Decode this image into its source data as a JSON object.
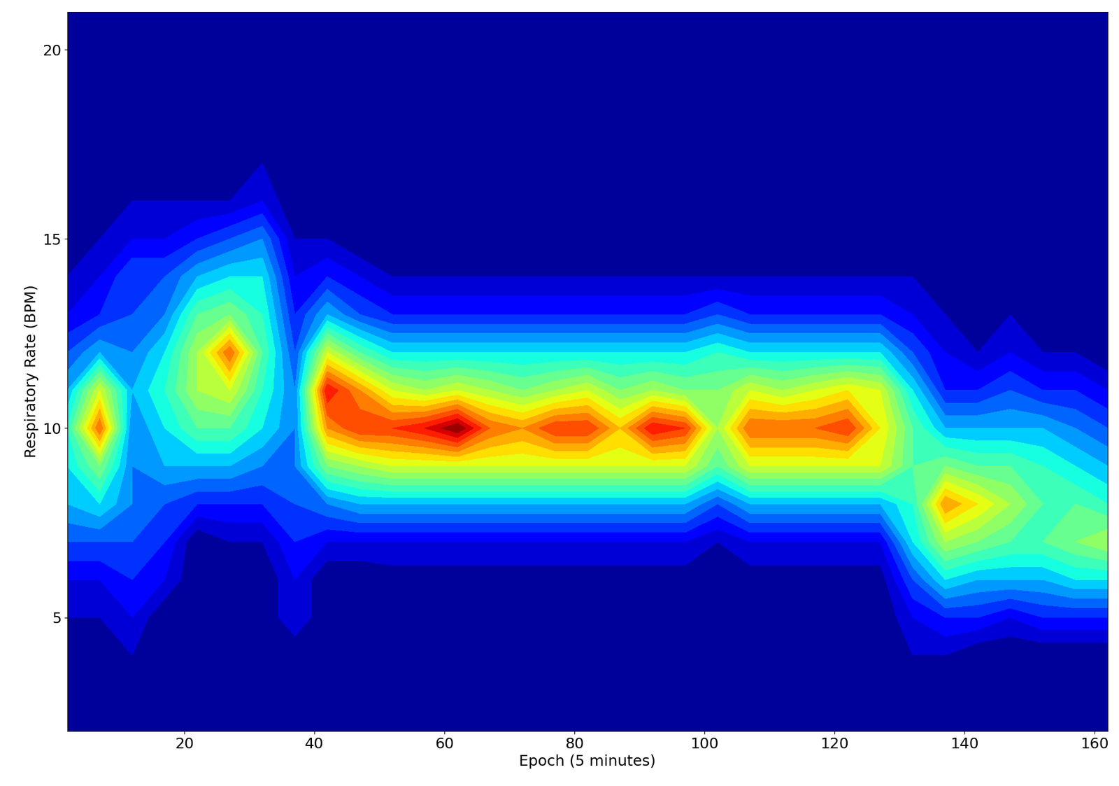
{
  "chart_data": {
    "type": "contour",
    "x_label": "Epoch (5 minutes)",
    "y_label": "Respiratory Rate (BPM)",
    "x": [
      2,
      7,
      12,
      17,
      22,
      27,
      32,
      37,
      42,
      47,
      52,
      57,
      62,
      67,
      72,
      77,
      82,
      87,
      92,
      97,
      102,
      107,
      112,
      117,
      122,
      127,
      132,
      137,
      142,
      147,
      152,
      157,
      162
    ],
    "y": [
      2,
      3,
      4,
      5,
      6,
      7,
      8,
      9,
      10,
      11,
      12,
      13,
      14,
      15,
      16,
      17,
      18,
      19,
      20,
      21
    ],
    "z": [
      [
        0,
        0,
        0,
        0.05,
        0.1,
        0.2,
        0.3,
        0.35,
        0.4,
        0.3,
        0.2,
        0.1,
        0.05,
        0,
        0,
        0,
        0,
        0,
        0,
        0
      ],
      [
        0,
        0,
        0,
        0.05,
        0.1,
        0.2,
        0.35,
        0.5,
        0.8,
        0.6,
        0.3,
        0.15,
        0.1,
        0.05,
        0,
        0,
        0,
        0,
        0,
        0
      ],
      [
        0,
        0,
        0.05,
        0.1,
        0.15,
        0.2,
        0.25,
        0.25,
        0.25,
        0.3,
        0.25,
        0.2,
        0.2,
        0.1,
        0.05,
        0.05,
        0,
        0,
        0.05,
        0
      ],
      [
        0,
        0,
        0,
        0,
        0.1,
        0.15,
        0.2,
        0.3,
        0.35,
        0.4,
        0.35,
        0.25,
        0.2,
        0.1,
        0.05,
        0.05,
        0,
        0,
        0,
        0
      ],
      [
        0,
        0,
        0,
        0,
        0,
        0,
        0.15,
        0.3,
        0.45,
        0.55,
        0.55,
        0.45,
        0.3,
        0.15,
        0.05,
        0,
        0,
        0,
        0,
        0
      ],
      [
        0,
        0,
        0,
        0,
        0,
        0.05,
        0.15,
        0.3,
        0.45,
        0.6,
        0.8,
        0.5,
        0.35,
        0.2,
        0.05,
        0.05,
        0,
        0,
        0,
        0
      ],
      [
        0,
        0,
        0,
        0,
        0,
        0.05,
        0.15,
        0.25,
        0.35,
        0.4,
        0.45,
        0.4,
        0.35,
        0.25,
        0.1,
        0.05,
        0,
        0,
        0,
        0
      ],
      [
        0,
        0,
        0,
        0.1,
        0.1,
        0.15,
        0.2,
        0.25,
        0.25,
        0.25,
        0.2,
        0.15,
        0.1,
        0.05,
        0,
        0,
        0,
        0,
        0.05,
        0
      ],
      [
        0,
        0,
        0,
        0,
        0,
        0.1,
        0.25,
        0.5,
        0.75,
        0.9,
        0.6,
        0.3,
        0.15,
        0.05,
        0,
        0,
        0,
        0,
        0,
        0
      ],
      [
        0,
        0,
        0,
        0,
        0,
        0.1,
        0.3,
        0.55,
        0.85,
        0.75,
        0.45,
        0.2,
        0.1,
        0,
        0,
        0,
        0,
        0,
        0,
        0
      ],
      [
        0,
        0,
        0,
        0,
        0.02,
        0.1,
        0.3,
        0.6,
        0.85,
        0.6,
        0.35,
        0.15,
        0.05,
        0,
        0,
        0,
        0,
        0,
        0,
        0
      ],
      [
        0,
        0,
        0,
        0,
        0.02,
        0.1,
        0.3,
        0.6,
        0.9,
        0.55,
        0.35,
        0.15,
        0.05,
        0,
        0,
        0,
        0,
        0,
        0,
        0
      ],
      [
        0,
        0,
        0,
        0,
        0.02,
        0.1,
        0.3,
        0.6,
        1.0,
        0.6,
        0.35,
        0.15,
        0.05,
        0,
        0,
        0,
        0,
        0,
        0,
        0
      ],
      [
        0,
        0,
        0,
        0,
        0.02,
        0.1,
        0.3,
        0.6,
        0.8,
        0.55,
        0.35,
        0.15,
        0.05,
        0,
        0,
        0,
        0,
        0,
        0,
        0
      ],
      [
        0,
        0,
        0,
        0,
        0.02,
        0.1,
        0.3,
        0.6,
        0.75,
        0.5,
        0.35,
        0.15,
        0.05,
        0,
        0,
        0,
        0,
        0,
        0,
        0
      ],
      [
        0,
        0,
        0,
        0,
        0.02,
        0.1,
        0.3,
        0.6,
        0.85,
        0.55,
        0.35,
        0.15,
        0.05,
        0,
        0,
        0,
        0,
        0,
        0,
        0
      ],
      [
        0,
        0,
        0,
        0,
        0.02,
        0.1,
        0.3,
        0.6,
        0.85,
        0.6,
        0.35,
        0.15,
        0.05,
        0,
        0,
        0,
        0,
        0,
        0,
        0
      ],
      [
        0,
        0,
        0,
        0,
        0.02,
        0.1,
        0.3,
        0.6,
        0.7,
        0.5,
        0.35,
        0.15,
        0.05,
        0,
        0,
        0,
        0,
        0,
        0,
        0
      ],
      [
        0,
        0,
        0,
        0,
        0.02,
        0.1,
        0.3,
        0.6,
        0.9,
        0.55,
        0.35,
        0.15,
        0.05,
        0,
        0,
        0,
        0,
        0,
        0,
        0
      ],
      [
        0,
        0,
        0,
        0,
        0.02,
        0.1,
        0.3,
        0.6,
        0.85,
        0.5,
        0.35,
        0.15,
        0.05,
        0,
        0,
        0,
        0,
        0,
        0,
        0
      ],
      [
        0,
        0,
        0,
        0,
        0.02,
        0.05,
        0.2,
        0.45,
        0.55,
        0.5,
        0.4,
        0.2,
        0.05,
        0,
        0,
        0,
        0,
        0,
        0,
        0
      ],
      [
        0,
        0,
        0,
        0,
        0.02,
        0.1,
        0.3,
        0.6,
        0.8,
        0.6,
        0.35,
        0.15,
        0.05,
        0,
        0,
        0,
        0,
        0,
        0,
        0
      ],
      [
        0,
        0,
        0,
        0,
        0.02,
        0.1,
        0.3,
        0.6,
        0.8,
        0.55,
        0.35,
        0.15,
        0.05,
        0,
        0,
        0,
        0,
        0,
        0,
        0
      ],
      [
        0,
        0,
        0,
        0,
        0.02,
        0.1,
        0.3,
        0.6,
        0.8,
        0.6,
        0.35,
        0.15,
        0.05,
        0,
        0,
        0,
        0,
        0,
        0,
        0
      ],
      [
        0,
        0,
        0,
        0,
        0.02,
        0.1,
        0.3,
        0.6,
        0.85,
        0.65,
        0.35,
        0.15,
        0.05,
        0,
        0,
        0,
        0,
        0,
        0,
        0
      ],
      [
        0,
        0,
        0,
        0,
        0.02,
        0.1,
        0.3,
        0.6,
        0.65,
        0.6,
        0.35,
        0.15,
        0.05,
        0,
        0,
        0,
        0,
        0,
        0,
        0
      ],
      [
        0,
        0,
        0.05,
        0.1,
        0.2,
        0.35,
        0.4,
        0.45,
        0.45,
        0.35,
        0.2,
        0.1,
        0.05,
        0,
        0,
        0,
        0,
        0,
        0,
        0
      ],
      [
        0,
        0,
        0.05,
        0.15,
        0.35,
        0.55,
        0.75,
        0.5,
        0.3,
        0.15,
        0.1,
        0.05,
        0,
        0,
        0,
        0,
        0,
        0,
        0,
        0
      ],
      [
        0,
        0,
        0,
        0.15,
        0.3,
        0.5,
        0.65,
        0.45,
        0.3,
        0.15,
        0.05,
        0,
        0,
        0,
        0,
        0,
        0,
        0,
        0,
        0
      ],
      [
        0,
        0,
        0,
        0.1,
        0.3,
        0.45,
        0.55,
        0.45,
        0.3,
        0.2,
        0.1,
        0.05,
        0,
        0,
        0,
        0,
        0,
        0,
        0,
        0
      ],
      [
        0,
        0,
        0,
        0.15,
        0.3,
        0.45,
        0.45,
        0.4,
        0.3,
        0.15,
        0.05,
        0,
        0,
        0,
        0,
        0,
        0,
        0,
        0,
        0
      ],
      [
        0,
        0,
        0,
        0.15,
        0.35,
        0.5,
        0.45,
        0.35,
        0.25,
        0.15,
        0.05,
        0,
        0,
        0,
        0,
        0,
        0,
        0,
        0,
        0
      ],
      [
        0,
        0,
        0,
        0.15,
        0.35,
        0.55,
        0.4,
        0.3,
        0.2,
        0.1,
        0,
        0,
        0,
        0,
        0,
        0,
        0,
        0,
        0,
        0
      ]
    ],
    "zlim": [
      0,
      1
    ],
    "xlim": [
      2,
      162
    ],
    "ylim": [
      2,
      21
    ],
    "xticks": [
      20,
      40,
      60,
      80,
      100,
      120,
      140,
      160
    ],
    "yticks": [
      5,
      10,
      15,
      20
    ],
    "grid": false
  }
}
